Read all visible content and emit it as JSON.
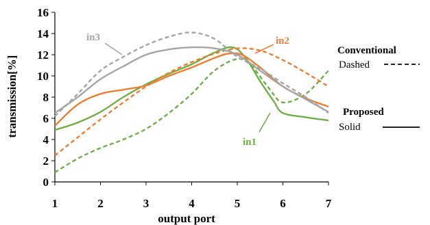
{
  "chart_data": {
    "type": "line",
    "title": "",
    "xlabel": "output port",
    "ylabel": "transmission[%]",
    "xlim": [
      1,
      7
    ],
    "ylim": [
      0,
      16
    ],
    "xticks": [
      1,
      2,
      3,
      4,
      5,
      6,
      7
    ],
    "yticks": [
      0,
      2,
      4,
      6,
      8,
      10,
      12,
      14,
      16
    ],
    "grid": false,
    "series": [
      {
        "name": "in1",
        "style": "dashed",
        "color": "#70ad47",
        "x": [
          1,
          1.5,
          2,
          2.5,
          3,
          3.5,
          4,
          4.5,
          5,
          5.3,
          5.7,
          6,
          6.5,
          7
        ],
        "y": [
          0.9,
          2.2,
          3.2,
          4.0,
          5.0,
          6.5,
          8.3,
          10.5,
          11.6,
          11.0,
          8.8,
          7.5,
          8.3,
          10.5
        ]
      },
      {
        "name": "in1",
        "style": "solid",
        "color": "#70ad47",
        "x": [
          1,
          1.5,
          2,
          2.5,
          3,
          3.5,
          4,
          4.5,
          4.9,
          5.2,
          5.5,
          5.8,
          6,
          6.5,
          7
        ],
        "y": [
          4.9,
          5.6,
          6.6,
          8.0,
          9.2,
          10.2,
          11.1,
          12.2,
          12.7,
          11.6,
          9.5,
          7.6,
          6.5,
          6.1,
          5.8
        ]
      },
      {
        "name": "in2",
        "style": "dashed",
        "color": "#ed7d31",
        "x": [
          1,
          1.5,
          2,
          2.5,
          3,
          3.5,
          4,
          4.5,
          5,
          5.5,
          6,
          6.5,
          7
        ],
        "y": [
          2.5,
          4.2,
          5.9,
          7.5,
          9.0,
          10.3,
          11.3,
          12.1,
          12.6,
          12.4,
          11.5,
          10.3,
          9.0
        ]
      },
      {
        "name": "in2",
        "style": "solid",
        "color": "#ed7d31",
        "x": [
          1,
          1.5,
          2,
          2.5,
          3,
          3.5,
          4,
          4.5,
          4.8,
          5.1,
          5.5,
          6,
          6.5,
          7
        ],
        "y": [
          5.3,
          7.3,
          8.3,
          8.7,
          9.1,
          10.0,
          10.8,
          11.7,
          12.1,
          12.0,
          10.8,
          9.0,
          7.9,
          7.1
        ]
      },
      {
        "name": "in3",
        "style": "dashed",
        "color": "#a5a5a5",
        "x": [
          1,
          1.5,
          2,
          2.5,
          3,
          3.5,
          4,
          4.5,
          5,
          5.5,
          6,
          6.5,
          7
        ],
        "y": [
          6.2,
          8.3,
          10.5,
          11.8,
          12.9,
          13.7,
          14.1,
          13.5,
          11.8,
          10.7,
          9.3,
          8.0,
          6.5
        ]
      },
      {
        "name": "in3",
        "style": "solid",
        "color": "#a5a5a5",
        "x": [
          1,
          1.5,
          2,
          2.5,
          3,
          3.5,
          4,
          4.5,
          5,
          5.5,
          6,
          6.5,
          7
        ],
        "y": [
          6.5,
          8.0,
          9.7,
          10.9,
          12.0,
          12.5,
          12.7,
          12.6,
          12.0,
          10.5,
          9.0,
          7.8,
          6.6
        ]
      }
    ],
    "annotations": [
      {
        "text": "in3",
        "color": "#a5a5a5"
      },
      {
        "text": "in2",
        "color": "#ed7d31"
      },
      {
        "text": "in1",
        "color": "#70ad47"
      }
    ],
    "legend": {
      "placement": "right",
      "conventional_title": "Conventional",
      "conventional_label": "Dashed",
      "proposed_title": "Proposed",
      "proposed_label": "Solid"
    }
  }
}
